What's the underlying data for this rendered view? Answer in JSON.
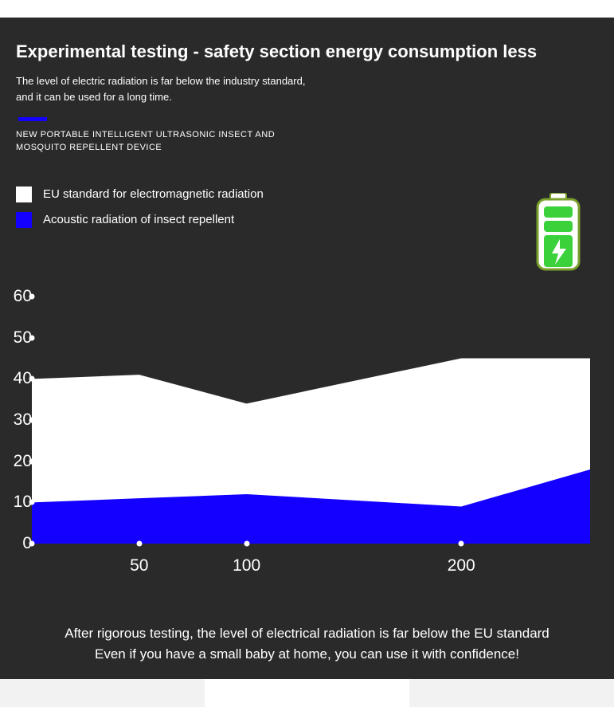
{
  "colors": {
    "panel_bg": "#2a2a2a",
    "text": "#ffffff",
    "accent": "#1400ff",
    "series_eu": "#ffffff",
    "series_acoustic": "#1400ff",
    "battery_body": "#ffffff",
    "battery_outline": "#7aa02c",
    "battery_cell": "#3bd13b",
    "battery_bolt": "#ffffff"
  },
  "header": {
    "title": "Experimental testing - safety section energy consumption less",
    "subtitle_line1": "The level of electric radiation is far below the industry standard,",
    "subtitle_line2": "and it can be used for a long time.",
    "device_line1": "NEW PORTABLE INTELLIGENT ULTRASONIC INSECT AND",
    "device_line2": "MOSQUITO  REPELLENT DEVICE"
  },
  "legend": {
    "eu": {
      "label": "EU standard for electromagnetic radiation",
      "color": "#ffffff"
    },
    "acoustic": {
      "label": "Acoustic radiation of insect repellent",
      "color": "#1400ff"
    }
  },
  "chart": {
    "type": "area",
    "ylim": [
      0,
      60
    ],
    "ytick_step": 10,
    "yticks": [
      "0",
      "10",
      "20",
      "30",
      "40",
      "50",
      "60"
    ],
    "xticks": [
      {
        "label": "50",
        "pos": 50
      },
      {
        "label": "100",
        "pos": 100
      },
      {
        "label": "200",
        "pos": 200
      }
    ],
    "x_start": 0,
    "x_end": 260,
    "series": {
      "eu": {
        "color": "#ffffff",
        "points": [
          [
            0,
            40
          ],
          [
            50,
            41
          ],
          [
            100,
            34
          ],
          [
            200,
            45
          ],
          [
            260,
            45
          ]
        ]
      },
      "acoustic": {
        "color": "#1400ff",
        "points": [
          [
            0,
            10
          ],
          [
            50,
            11
          ],
          [
            100,
            12
          ],
          [
            200,
            9
          ],
          [
            260,
            18
          ]
        ]
      }
    },
    "axis_dot_color": "#ffffff",
    "label_fontsize": 21
  },
  "footer": {
    "line1": "After rigorous testing, the level of electrical radiation is far below the EU standard",
    "line2": "Even if you have a small baby at home, you can use it with confidence!"
  }
}
